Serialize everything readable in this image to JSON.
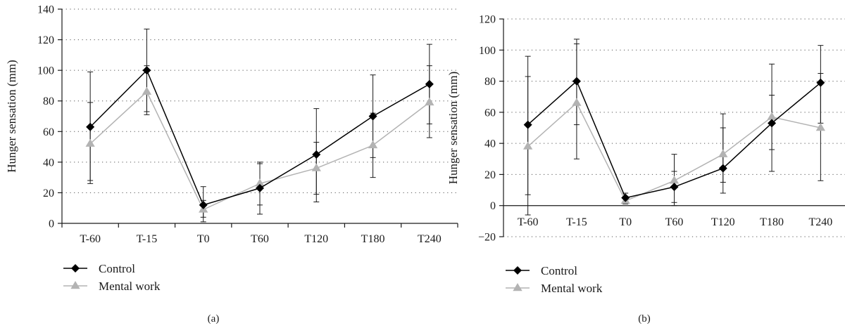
{
  "chart_data": [
    {
      "type": "line",
      "panel_label": "(a)",
      "ylabel": "Hunger sensation (mm)",
      "categories": [
        "T-60",
        "T-15",
        "T0",
        "T60",
        "T120",
        "T180",
        "T240"
      ],
      "ylim": [
        0,
        140
      ],
      "yticks": [
        0,
        20,
        40,
        60,
        80,
        100,
        120,
        140
      ],
      "grid": "horizontal dotted",
      "legend_position": "bottom-left",
      "series": [
        {
          "name": "Control",
          "color": "#000000",
          "marker": "diamond",
          "values": [
            63,
            100,
            12,
            23,
            45,
            70,
            91
          ],
          "error_low": [
            26,
            73,
            1,
            6,
            14,
            43,
            65
          ],
          "error_high": [
            99,
            127,
            24,
            40,
            75,
            97,
            117
          ]
        },
        {
          "name": "Mental work",
          "color": "#b3b3b3",
          "marker": "triangle",
          "values": [
            52,
            86,
            9,
            26,
            36,
            51,
            79
          ],
          "error_low": [
            28,
            71,
            4,
            12,
            19,
            30,
            56
          ],
          "error_high": [
            79,
            103,
            15,
            39,
            53,
            72,
            103
          ]
        }
      ]
    },
    {
      "type": "line",
      "panel_label": "(b)",
      "ylabel": "Hunger sensation (mm)",
      "categories": [
        "T-60",
        "T-15",
        "T0",
        "T60",
        "T120",
        "T180",
        "T240"
      ],
      "ylim": [
        -20,
        120
      ],
      "yticks": [
        -20,
        0,
        20,
        40,
        60,
        80,
        100,
        120
      ],
      "grid": "horizontal dotted",
      "legend_position": "bottom-left",
      "series": [
        {
          "name": "Control",
          "color": "#000000",
          "marker": "diamond",
          "values": [
            52,
            80,
            5,
            12,
            24,
            53,
            79
          ],
          "error_low": [
            7,
            52,
            2,
            2,
            8,
            36,
            53
          ],
          "error_high": [
            96,
            107,
            8,
            22,
            59,
            71,
            103
          ]
        },
        {
          "name": "Mental work",
          "color": "#b3b3b3",
          "marker": "triangle",
          "values": [
            38,
            66,
            3,
            16,
            33,
            57,
            50
          ],
          "error_low": [
            -6,
            30,
            1,
            0,
            15,
            22,
            16
          ],
          "error_high": [
            83,
            104,
            6,
            33,
            50,
            91,
            85
          ]
        }
      ]
    }
  ]
}
